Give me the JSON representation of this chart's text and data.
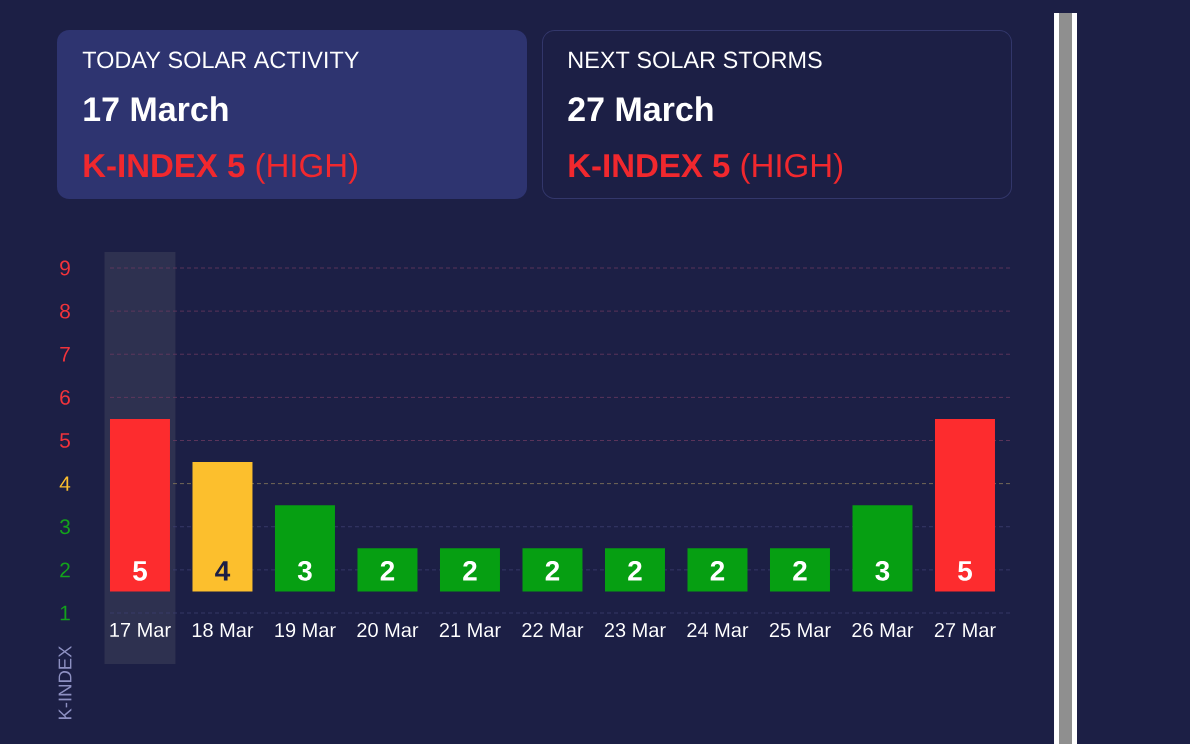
{
  "chart_data": [
    {
      "type": "other",
      "title": "TODAY SOLAR ACTIVITY",
      "subtitle": "17 March",
      "annotations": [
        "**K-INDEX 5** (HIGH)"
      ]
    },
    {
      "type": "other",
      "title": "NEXT SOLAR STORMS",
      "subtitle": "27 March",
      "annotations": [
        "**K-INDEX 5** (HIGH)"
      ]
    },
    {
      "type": "bar",
      "ylabel": "K-INDEX",
      "categories": [
        "17 Mar",
        "18 Mar",
        "19 Mar",
        "20 Mar",
        "21 Mar",
        "22 Mar",
        "23 Mar",
        "24 Mar",
        "25 Mar",
        "26 Mar",
        "27 Mar"
      ],
      "values": [
        4,
        3,
        2,
        1,
        1,
        1,
        1,
        1,
        1,
        2,
        4
      ],
      "base": [
        1.5,
        1.5,
        1.5,
        1.5,
        1.5,
        1.5,
        1.5,
        1.5,
        1.5,
        1.5,
        1.5
      ],
      "value_labels": [
        "5",
        "4",
        "3",
        "2",
        "2",
        "2",
        "2",
        "2",
        "2",
        "3",
        "5"
      ],
      "colors": [
        "#fd2c2e",
        "#fcbf2d",
        "#069f12",
        "#069f12",
        "#069f12",
        "#069f12",
        "#069f12",
        "#069f12",
        "#069f12",
        "#069f12",
        "#fd2c2e"
      ],
      "ylim": [
        1,
        9
      ],
      "yticks": [
        1,
        2,
        3,
        4,
        5,
        6,
        7,
        8,
        9
      ],
      "grid": "y",
      "ref_lines": [
        {
          "axis": "y",
          "value": 4,
          "color": "#8a7b5a",
          "line_style": "dashed"
        }
      ],
      "bands": [
        {
          "axis": "x",
          "from": "17 Mar",
          "to": "17 Mar",
          "color": "#2e3150"
        }
      ]
    }
  ]
}
